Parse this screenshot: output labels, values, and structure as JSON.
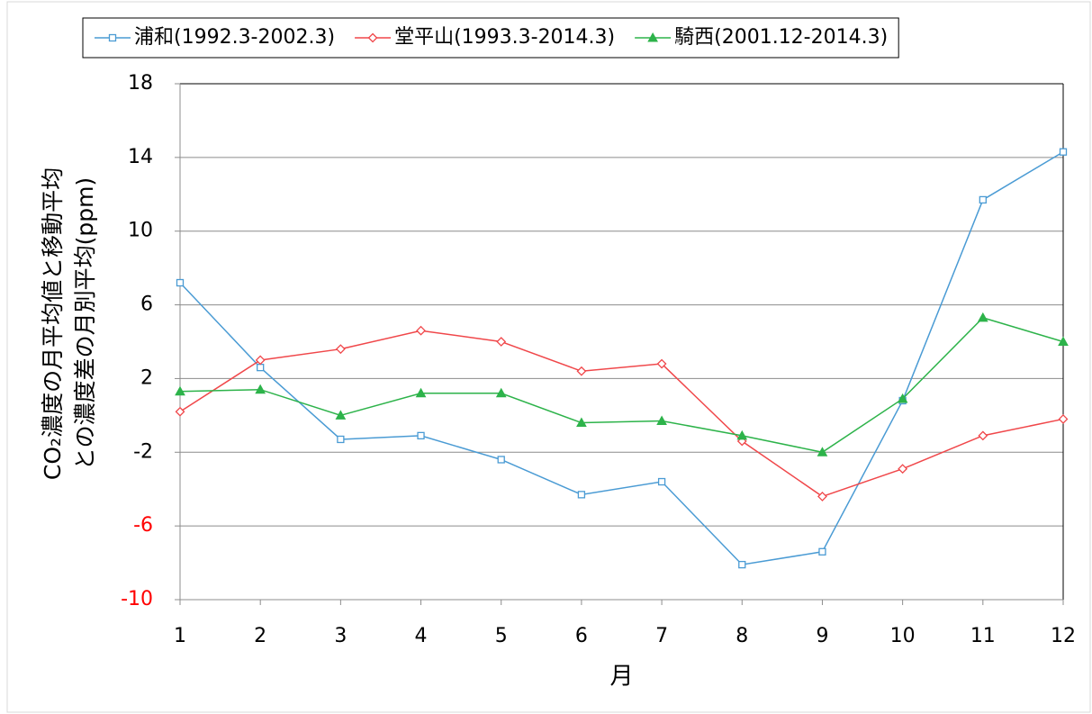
{
  "chart_data": {
    "type": "line",
    "x_label": "月",
    "y_label": [
      "CO₂濃度の月平均値と移動平均",
      "との濃度差の月別平均(ppm)"
    ],
    "x": [
      1,
      2,
      3,
      4,
      5,
      6,
      7,
      8,
      9,
      10,
      11,
      12
    ],
    "xlim": [
      1,
      12
    ],
    "xticks": [
      1,
      2,
      3,
      4,
      5,
      6,
      7,
      8,
      9,
      10,
      11,
      12
    ],
    "ylim": [
      -10,
      18
    ],
    "yticks": [
      18,
      14,
      10,
      6,
      2,
      -2,
      -6,
      -10
    ],
    "ytick_colors": [
      "#000000",
      "#000000",
      "#000000",
      "#000000",
      "#000000",
      "#000000",
      "#ff0000",
      "#ff0000"
    ],
    "grid": true,
    "legend": "top",
    "series": [
      {
        "name": "浦和(1992.3-2002.3)",
        "color": "#4a9bd4",
        "marker": "square",
        "values": [
          7.2,
          2.6,
          -1.3,
          -1.1,
          -2.4,
          -4.3,
          -3.6,
          -8.1,
          -7.4,
          0.8,
          11.7,
          14.3
        ]
      },
      {
        "name": "堂平山(1993.3-2014.3)",
        "color": "#f0474a",
        "marker": "diamond",
        "values": [
          0.2,
          3.0,
          3.6,
          4.6,
          4.0,
          2.4,
          2.8,
          -1.4,
          -4.4,
          -2.9,
          -1.1,
          -0.2
        ]
      },
      {
        "name": "騎西(2001.12-2014.3)",
        "color": "#2db34a",
        "marker": "triangle",
        "values": [
          1.3,
          1.4,
          0.0,
          1.2,
          1.2,
          -0.4,
          -0.3,
          -1.1,
          -2.0,
          0.9,
          5.3,
          4.0
        ]
      }
    ]
  }
}
